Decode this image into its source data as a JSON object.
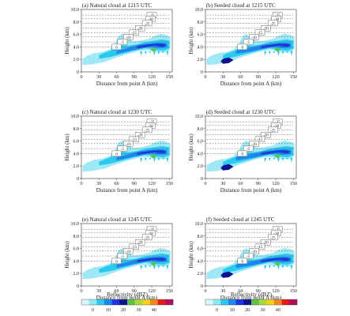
{
  "chart_data": [
    {
      "type": "contour",
      "title": "(a) Natural cloud at 1215 UTC",
      "xlabel": "Distance from point A (km)",
      "ylabel": "Height (km)",
      "xlim": [
        0,
        155
      ],
      "ylim": [
        0,
        10
      ],
      "xticks": [
        "0",
        "30",
        "60",
        "90",
        "120",
        "150"
      ],
      "yticks": [
        "0",
        "2.0",
        "4.0",
        "6.0",
        "8.0",
        "10.0"
      ],
      "temperature_isotherms": [
        {
          "label": "-35",
          "height": 9.1
        },
        {
          "label": "-30",
          "height": 8.5
        },
        {
          "label": "-25",
          "height": 7.8
        },
        {
          "label": "-20",
          "height": 7.0
        },
        {
          "label": "-15",
          "height": 6.3
        },
        {
          "label": "-10",
          "height": 5.6
        },
        {
          "label": "-5",
          "height": 4.8
        },
        {
          "label": "0",
          "height": 4.0
        }
      ]
    },
    {
      "type": "contour",
      "title": "(b) Seeded cloud at 1215 UTC",
      "xlabel": "Distance from point A (km)",
      "ylabel": "Height (km)",
      "xlim": [
        0,
        155
      ],
      "ylim": [
        0,
        10
      ],
      "xticks": [
        "0",
        "30",
        "60",
        "90",
        "120",
        "150"
      ],
      "yticks": [
        "0",
        "2.0",
        "4.0",
        "6.0",
        "8.0",
        "10.0"
      ],
      "temperature_isotherms": [
        {
          "label": "-35",
          "height": 9.1
        },
        {
          "label": "-30",
          "height": 8.5
        },
        {
          "label": "-25",
          "height": 7.8
        },
        {
          "label": "-20",
          "height": 7.0
        },
        {
          "label": "-15",
          "height": 6.3
        },
        {
          "label": "-10",
          "height": 5.6
        },
        {
          "label": "-5",
          "height": 4.8
        },
        {
          "label": "0",
          "height": 4.0
        }
      ]
    },
    {
      "type": "contour",
      "title": "(c) Natural cloud at 1230 UTC",
      "xlabel": "Distance from point A (km)",
      "ylabel": "Height (km)",
      "xlim": [
        0,
        155
      ],
      "ylim": [
        0,
        10
      ],
      "xticks": [
        "0",
        "30",
        "60",
        "90",
        "120",
        "150"
      ],
      "yticks": [
        "0",
        "2.0",
        "4.0",
        "6.0",
        "8.0",
        "10.0"
      ],
      "temperature_isotherms": [
        {
          "label": "-35",
          "height": 9.1
        },
        {
          "label": "-30",
          "height": 8.5
        },
        {
          "label": "-25",
          "height": 7.8
        },
        {
          "label": "-20",
          "height": 7.0
        },
        {
          "label": "-15",
          "height": 6.3
        },
        {
          "label": "-10",
          "height": 5.6
        },
        {
          "label": "-5",
          "height": 4.8
        },
        {
          "label": "0",
          "height": 4.0
        }
      ]
    },
    {
      "type": "contour",
      "title": "(d) Seeded cloud at 1230 UTC",
      "xlabel": "Distance from point A (km)",
      "ylabel": "Height (km)",
      "xlim": [
        0,
        155
      ],
      "ylim": [
        0,
        10
      ],
      "xticks": [
        "0",
        "30",
        "60",
        "90",
        "120",
        "150"
      ],
      "yticks": [
        "0",
        "2.0",
        "4.0",
        "6.0",
        "8.0",
        "10.0"
      ],
      "temperature_isotherms": [
        {
          "label": "-35",
          "height": 9.1
        },
        {
          "label": "-30",
          "height": 8.5
        },
        {
          "label": "-25",
          "height": 7.8
        },
        {
          "label": "-20",
          "height": 7.0
        },
        {
          "label": "-15",
          "height": 6.3
        },
        {
          "label": "-10",
          "height": 5.6
        },
        {
          "label": "-5",
          "height": 4.8
        },
        {
          "label": "0",
          "height": 4.0
        }
      ]
    },
    {
      "type": "contour",
      "title": "(e) Natural cloud at 1245 UTC",
      "xlabel": "Distance from point A (km)",
      "ylabel": "Height (km)",
      "xlim": [
        0,
        155
      ],
      "ylim": [
        0,
        10
      ],
      "xticks": [
        "0",
        "30",
        "60",
        "90",
        "120",
        "150"
      ],
      "yticks": [
        "0",
        "2.0",
        "4.0",
        "6.0",
        "8.0",
        "10.0"
      ],
      "temperature_isotherms": [
        {
          "label": "-35",
          "height": 9.1
        },
        {
          "label": "-30",
          "height": 8.5
        },
        {
          "label": "-25",
          "height": 7.8
        },
        {
          "label": "-20",
          "height": 7.0
        },
        {
          "label": "-15",
          "height": 6.3
        },
        {
          "label": "-10",
          "height": 5.6
        },
        {
          "label": "-5",
          "height": 4.8
        },
        {
          "label": "0",
          "height": 4.0
        }
      ]
    },
    {
      "type": "contour",
      "title": "(f) Seeded cloud at 1245 UTC",
      "xlabel": "Distance from point A (km)",
      "ylabel": "Height (km)",
      "xlim": [
        0,
        155
      ],
      "ylim": [
        0,
        10
      ],
      "xticks": [
        "0",
        "30",
        "60",
        "90",
        "120",
        "150"
      ],
      "yticks": [
        "0",
        "2.0",
        "4.0",
        "6.0",
        "8.0",
        "10.0"
      ],
      "temperature_isotherms": [
        {
          "label": "-35",
          "height": 9.1
        },
        {
          "label": "-30",
          "height": 8.5
        },
        {
          "label": "-25",
          "height": 7.8
        },
        {
          "label": "-20",
          "height": 7.0
        },
        {
          "label": "-15",
          "height": 6.3
        },
        {
          "label": "-10",
          "height": 5.6
        },
        {
          "label": "-5",
          "height": 4.8
        },
        {
          "label": "0",
          "height": 4.0
        }
      ]
    }
  ],
  "colorbars": [
    {
      "label": "Reflectivity (dBZ)",
      "ticks": [
        "0",
        "10",
        "20",
        "30",
        "40"
      ],
      "colors": [
        "#d8f6fb",
        "#8fe8f4",
        "#2bc9ee",
        "#1f86f0",
        "#1a36e0",
        "#0e128f",
        "#5ec24a",
        "#a9d93d",
        "#f2d21f",
        "#f08a1e",
        "#e21b1b",
        "#b0105a"
      ]
    },
    {
      "label": "Reflectivity (dBZ)",
      "ticks": [
        "0",
        "10",
        "20",
        "30",
        "40"
      ],
      "colors": [
        "#d8f6fb",
        "#8fe8f4",
        "#2bc9ee",
        "#1f86f0",
        "#1a36e0",
        "#0e128f",
        "#5ec24a",
        "#a9d93d",
        "#f2d21f",
        "#f08a1e",
        "#e21b1b",
        "#b0105a"
      ]
    }
  ]
}
